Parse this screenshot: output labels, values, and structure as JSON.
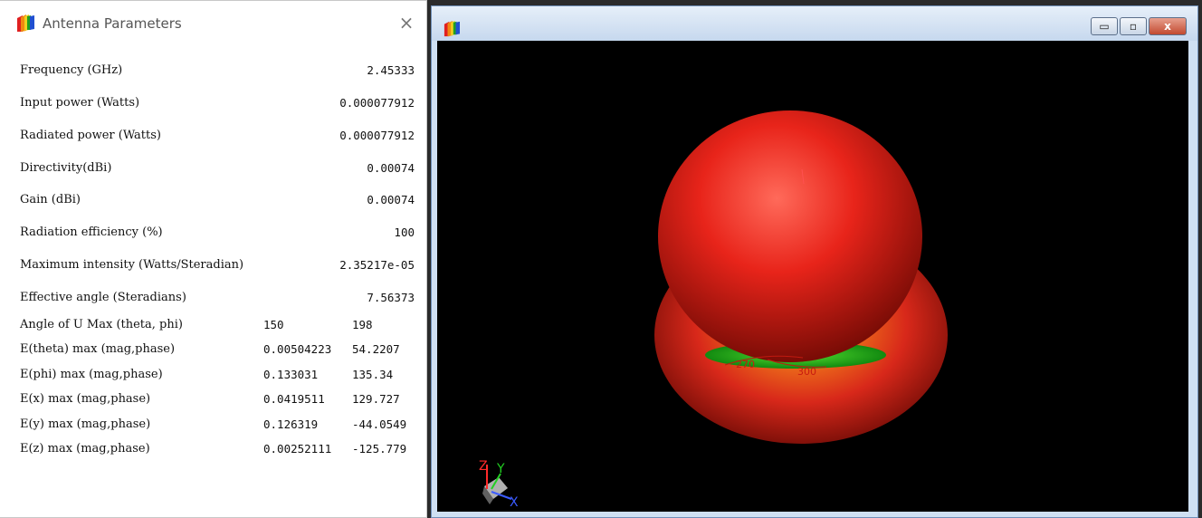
{
  "dialog": {
    "title": "Antenna Parameters",
    "close_glyph": "×",
    "rows": [
      {
        "label": "Frequency (GHz)",
        "value": "2.45333"
      },
      {
        "label": "Input power (Watts)",
        "value": "0.000077912"
      },
      {
        "label": "Radiated power (Watts)",
        "value": "0.000077912"
      },
      {
        "label": "Directivity(dBi)",
        "value": "0.00074"
      },
      {
        "label": "Gain (dBi)",
        "value": "0.00074"
      },
      {
        "label": "Radiation efficiency (%)",
        "value": "100"
      },
      {
        "label": "Maximum intensity (Watts/Steradian)",
        "value": "2.35217e-05"
      },
      {
        "label": "Effective angle (Steradians)",
        "value": "7.56373"
      }
    ],
    "pair_rows": [
      {
        "label": "Angle of U Max (theta, phi)",
        "v1": "150",
        "v2": "198"
      },
      {
        "label": "E(theta) max (mag,phase)",
        "v1": "0.00504223",
        "v2": "54.2207"
      },
      {
        "label": "E(phi) max (mag,phase)",
        "v1": "0.133031",
        "v2": "135.34"
      },
      {
        "label": "E(x) max (mag,phase)",
        "v1": "0.0419511",
        "v2": "129.727"
      },
      {
        "label": "E(y) max (mag,phase)",
        "v1": "0.126319",
        "v2": "-44.0549"
      },
      {
        "label": "E(z) max (mag,phase)",
        "v1": "0.00252111",
        "v2": "-125.779"
      }
    ]
  },
  "viewer": {
    "buttons": {
      "minimize": "▭",
      "maximize": "▫",
      "close": "x"
    },
    "plot_labels": {
      "angle_a": "270",
      "angle_b": "300"
    },
    "axes": {
      "x": "X",
      "y": "Y",
      "z": "Z"
    }
  },
  "colors": {
    "pattern_red": "#e8241a",
    "pattern_green": "#22b51a",
    "axis_z": "#ff2a2a",
    "axis_y": "#22d022",
    "axis_x": "#3b5bff"
  }
}
